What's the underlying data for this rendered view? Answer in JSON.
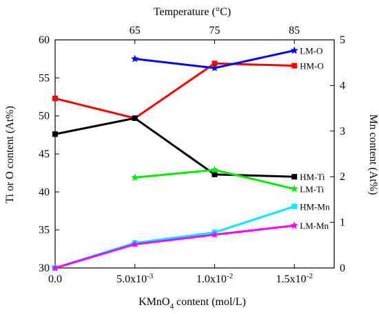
{
  "chart_data": {
    "type": "line",
    "title": "",
    "x_axis_bottom": {
      "label_prefix": "KMnO",
      "label_subscript": "4",
      "label_suffix": " content (mol/L)",
      "range": [
        0,
        0.0175
      ],
      "ticks": [
        {
          "value": 0,
          "label": "0.0"
        },
        {
          "value": 0.005,
          "label": "5.0x10",
          "exp": "-3"
        },
        {
          "value": 0.01,
          "label": "1.0x10",
          "exp": "-2"
        },
        {
          "value": 0.015,
          "label": "1.5x10",
          "exp": "-2"
        }
      ]
    },
    "x_axis_top": {
      "label": "Temperature (°C)",
      "ticks": [
        {
          "value": 0.005,
          "label": "65"
        },
        {
          "value": 0.01,
          "label": "75"
        },
        {
          "value": 0.015,
          "label": "85"
        }
      ]
    },
    "y_axis_left": {
      "label": "Ti or O content (At%)",
      "range": [
        30,
        60
      ],
      "ticks": [
        30,
        35,
        40,
        45,
        50,
        55,
        60
      ]
    },
    "y_axis_right": {
      "label": "Mn content (At%)",
      "range": [
        0,
        5
      ],
      "ticks": [
        0,
        1,
        2,
        3,
        4,
        5
      ]
    },
    "grid": false,
    "series": [
      {
        "name": "HM-O",
        "axis": "left",
        "color": "#ff0000",
        "marker": "square",
        "x": [
          0,
          0.005,
          0.01,
          0.015
        ],
        "y": [
          52.3,
          49.7,
          56.9,
          56.6
        ]
      },
      {
        "name": "LM-O",
        "axis": "left",
        "color": "#0000ff",
        "marker": "star",
        "x": [
          0.005,
          0.01,
          0.015
        ],
        "y": [
          57.5,
          56.3,
          58.6
        ]
      },
      {
        "name": "HM-Ti",
        "axis": "left",
        "color": "#000000",
        "marker": "square",
        "x": [
          0,
          0.005,
          0.01,
          0.015
        ],
        "y": [
          47.6,
          49.7,
          42.3,
          42.0
        ]
      },
      {
        "name": "LM-Ti",
        "axis": "left",
        "color": "#00ee00",
        "marker": "star",
        "x": [
          0.005,
          0.01,
          0.015
        ],
        "y": [
          41.9,
          42.9,
          40.4
        ]
      },
      {
        "name": "HM-Mn",
        "axis": "right",
        "color": "#00eeff",
        "marker": "square",
        "x": [
          0,
          0.005,
          0.01,
          0.015
        ],
        "y": [
          0.0,
          0.55,
          0.78,
          1.35
        ]
      },
      {
        "name": "LM-Mn",
        "axis": "right",
        "color": "#ff00ff",
        "marker": "star",
        "x": [
          0,
          0.005,
          0.01,
          0.015
        ],
        "y": [
          0.0,
          0.52,
          0.73,
          0.93
        ]
      }
    ]
  }
}
